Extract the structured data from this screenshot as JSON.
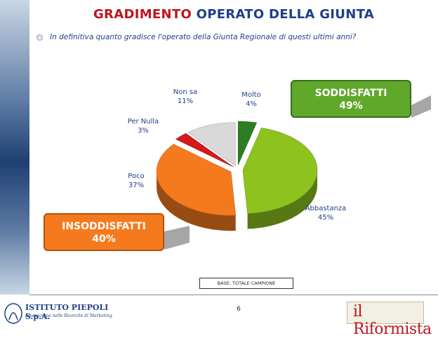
{
  "title": {
    "part1": "GRADIMENTO",
    "part2": "OPERATO DELLA GIUNTA"
  },
  "question": "In definitiva quanto gradisce l'operato della Giunta Regionale di questi ultimi anni?",
  "chart_data": {
    "type": "pie",
    "slices": [
      {
        "label": "Molto",
        "value": 4,
        "display": "4%",
        "color": "#2f7d23"
      },
      {
        "label": "Abbastanza",
        "value": 45,
        "display": "45%",
        "color": "#8dc21f"
      },
      {
        "label": "Poco",
        "value": 37,
        "display": "37%",
        "color": "#f57a1e"
      },
      {
        "label": "Per Nulla",
        "value": 3,
        "display": "3%",
        "color": "#d41a1a"
      },
      {
        "label": "Non sa",
        "value": 11,
        "display": "11%",
        "color": "#d9d9d9"
      }
    ]
  },
  "summary": {
    "satisfied_label": "SODDISFATTI",
    "satisfied_value": "49%",
    "unsatisfied_label": "INSODDISFATTI",
    "unsatisfied_value": "40%"
  },
  "base_note": "BASE: TOTALE CAMPIONE",
  "page_number": "6",
  "logos": {
    "left_name": "ISTITUTO PIEPOLI S.p.A.",
    "left_tagline": "Innovazione nelle Ricerche di Marketing",
    "right_name": "il Riformista"
  },
  "colors": {
    "title_red": "#c0141e",
    "title_blue": "#1f3f87",
    "satisfied_green": "#5fa82b",
    "unsatisfied_orange": "#f57a1e"
  }
}
